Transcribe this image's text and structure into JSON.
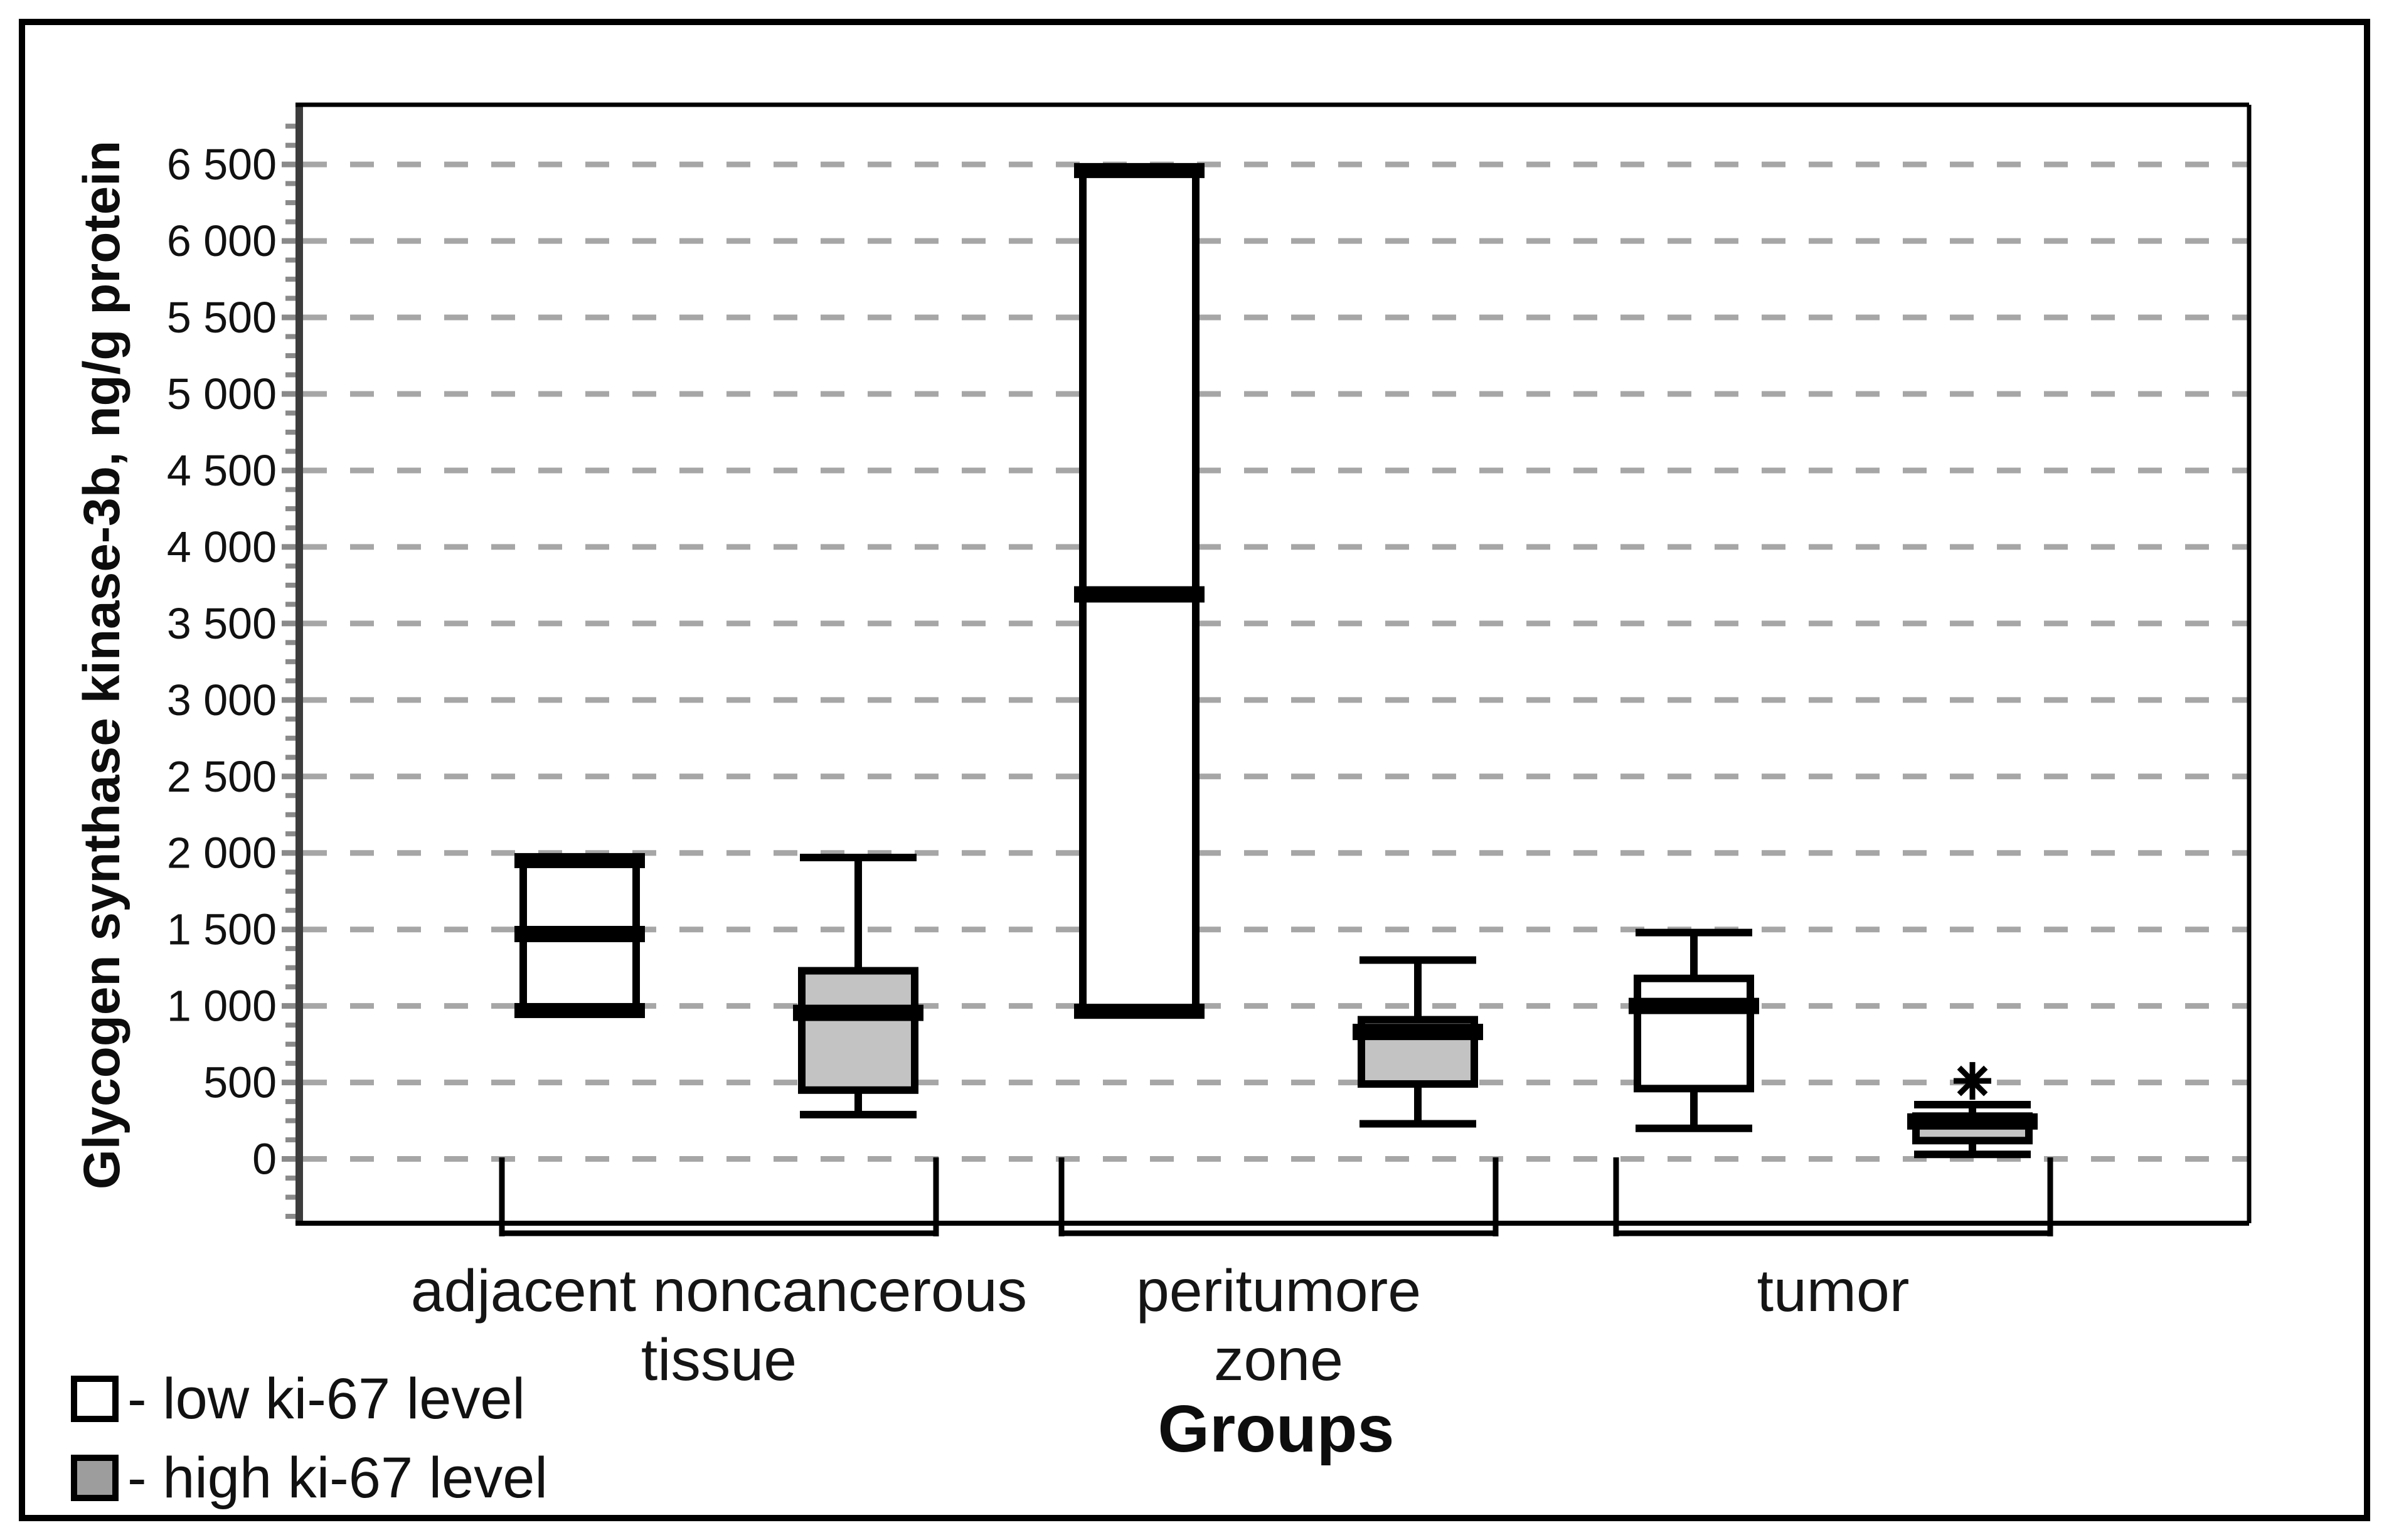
{
  "figure": {
    "y_axis_title": "Glycogen synthase kinase-3b, ng/g protein",
    "x_axis_title": "Groups"
  },
  "legend": {
    "items": [
      {
        "label": "- low ki-67 level",
        "swatch": "#ffffff"
      },
      {
        "label": "- high ki-67 level",
        "swatch": "#9d9d9d"
      }
    ]
  },
  "colors": {
    "box_low_fill": "#ffffff",
    "box_high_fill": "#c3c3c3",
    "box_stroke": "#000000",
    "gridline": "#a6a6a6",
    "tick": "#8a8a8a",
    "axis_line": "#3c3c3c",
    "plot_border": "#000000",
    "text": "#111111"
  },
  "chart_data": {
    "type": "boxplot",
    "title": "",
    "xlabel": "Groups",
    "ylabel": "Glycogen synthase kinase-3b, ng/g protein",
    "ylim": [
      -420,
      6890
    ],
    "grid": "horizontal dashed gridlines at every labeled tick",
    "legend_position": "bottom-left",
    "y_major_tick_step": 500,
    "y_minor_tick_step": 125,
    "yticks": {
      "values": [
        0,
        500,
        1000,
        1500,
        2000,
        2500,
        3000,
        3500,
        4000,
        4500,
        5000,
        5500,
        6000,
        6500
      ],
      "labels": [
        "0",
        "500",
        "1 000",
        "1 500",
        "2 000",
        "2 500",
        "3 000",
        "3 500",
        "4 000",
        "4 500",
        "5 000",
        "5 500",
        "6 000",
        "6 500"
      ]
    },
    "categories": [
      "adjacent noncancerous tissue",
      "peritumore zone",
      "tumor"
    ],
    "category_label_lines": [
      [
        "adjacent noncancerous",
        "tissue"
      ],
      [
        "peritumore",
        "zone"
      ],
      [
        "tumor"
      ]
    ],
    "series": [
      {
        "name": "low ki-67 level",
        "fill": "#ffffff",
        "boxes": [
          {
            "group": "adjacent noncancerous tissue",
            "whisker_low": null,
            "q1": 970,
            "median": 1470,
            "q3": 1950,
            "whisker_high": null,
            "outliers": []
          },
          {
            "group": "peritumore zone",
            "whisker_low": null,
            "q1": 965,
            "median": 3690,
            "q3": 6460,
            "whisker_high": null,
            "outliers": []
          },
          {
            "group": "tumor",
            "whisker_low": 200,
            "q1": 460,
            "median": 1000,
            "q3": 1180,
            "whisker_high": 1480,
            "outliers": []
          }
        ]
      },
      {
        "name": "high ki-67 level",
        "fill": "#c3c3c3",
        "boxes": [
          {
            "group": "adjacent noncancerous tissue",
            "whisker_low": 290,
            "q1": 450,
            "median": 955,
            "q3": 1230,
            "whisker_high": 1970,
            "outliers": []
          },
          {
            "group": "peritumore zone",
            "whisker_low": 230,
            "q1": 490,
            "median": 830,
            "q3": 910,
            "whisker_high": 1300,
            "outliers": []
          },
          {
            "group": "tumor",
            "whisker_low": 30,
            "q1": 120,
            "median": 245,
            "q3": 280,
            "whisker_high": 355,
            "outliers": [
              510
            ]
          }
        ]
      }
    ]
  }
}
